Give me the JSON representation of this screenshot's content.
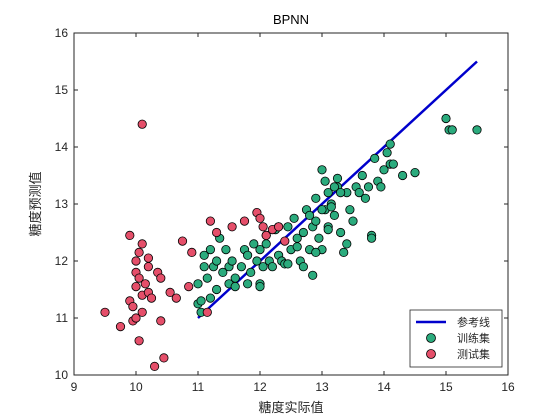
{
  "chart_data": {
    "type": "scatter",
    "title": "BPNN",
    "xlabel": "糖度实际值",
    "ylabel": "糖度预测值",
    "xlim": [
      9,
      16
    ],
    "ylim": [
      10,
      16
    ],
    "xticks": [
      "9",
      "10",
      "11",
      "12",
      "13",
      "14",
      "15",
      "16"
    ],
    "yticks": [
      "10",
      "11",
      "12",
      "13",
      "14",
      "15",
      "16"
    ],
    "grid": false,
    "legend_position": "bottom-right",
    "series": [
      {
        "name": "参考线",
        "kind": "line",
        "color": "#0000cc",
        "points": [
          [
            11.0,
            11.0
          ],
          [
            15.5,
            15.5
          ]
        ]
      },
      {
        "name": "训练集",
        "kind": "scatter",
        "color": "#2bab7d",
        "points": [
          [
            11.0,
            11.6
          ],
          [
            11.0,
            11.25
          ],
          [
            11.05,
            11.3
          ],
          [
            11.1,
            11.9
          ],
          [
            11.1,
            12.1
          ],
          [
            11.15,
            11.7
          ],
          [
            11.2,
            12.2
          ],
          [
            11.25,
            11.9
          ],
          [
            11.3,
            12.0
          ],
          [
            11.3,
            11.5
          ],
          [
            11.35,
            12.4
          ],
          [
            11.4,
            11.8
          ],
          [
            11.45,
            12.2
          ],
          [
            11.5,
            11.9
          ],
          [
            11.55,
            12.0
          ],
          [
            11.6,
            11.7
          ],
          [
            11.7,
            11.9
          ],
          [
            11.75,
            12.2
          ],
          [
            11.8,
            12.1
          ],
          [
            11.85,
            11.8
          ],
          [
            11.9,
            12.3
          ],
          [
            11.95,
            12.0
          ],
          [
            12.0,
            11.6
          ],
          [
            12.0,
            12.2
          ],
          [
            12.05,
            11.9
          ],
          [
            12.1,
            12.3
          ],
          [
            12.15,
            12.0
          ],
          [
            12.2,
            11.9
          ],
          [
            12.3,
            12.6
          ],
          [
            12.3,
            12.1
          ],
          [
            12.35,
            12.0
          ],
          [
            12.4,
            11.95
          ],
          [
            12.45,
            12.6
          ],
          [
            12.5,
            12.2
          ],
          [
            12.55,
            12.75
          ],
          [
            12.6,
            12.4
          ],
          [
            12.65,
            12.0
          ],
          [
            12.7,
            12.5
          ],
          [
            12.75,
            12.9
          ],
          [
            12.8,
            12.8
          ],
          [
            12.8,
            12.2
          ],
          [
            12.85,
            12.6
          ],
          [
            12.9,
            12.7
          ],
          [
            12.9,
            13.1
          ],
          [
            12.95,
            12.4
          ],
          [
            13.0,
            13.6
          ],
          [
            13.0,
            12.2
          ],
          [
            13.05,
            13.4
          ],
          [
            13.05,
            12.9
          ],
          [
            13.1,
            12.6
          ],
          [
            13.1,
            13.2
          ],
          [
            13.15,
            13.0
          ],
          [
            13.2,
            12.8
          ],
          [
            13.25,
            13.3
          ],
          [
            13.3,
            12.5
          ],
          [
            13.35,
            12.15
          ],
          [
            13.4,
            13.2
          ],
          [
            13.45,
            12.9
          ],
          [
            13.5,
            12.7
          ],
          [
            13.55,
            13.3
          ],
          [
            13.6,
            13.2
          ],
          [
            13.65,
            13.5
          ],
          [
            13.7,
            13.1
          ],
          [
            13.75,
            13.3
          ],
          [
            13.8,
            12.45
          ],
          [
            13.8,
            12.4
          ],
          [
            13.85,
            13.8
          ],
          [
            13.9,
            13.4
          ],
          [
            13.95,
            13.3
          ],
          [
            14.0,
            13.6
          ],
          [
            14.05,
            13.9
          ],
          [
            14.1,
            14.05
          ],
          [
            14.1,
            13.7
          ],
          [
            14.15,
            13.7
          ],
          [
            14.3,
            13.5
          ],
          [
            14.5,
            13.55
          ],
          [
            15.0,
            14.5
          ],
          [
            15.05,
            14.3
          ],
          [
            15.1,
            14.3
          ],
          [
            15.5,
            14.3
          ],
          [
            11.05,
            11.1
          ],
          [
            11.2,
            11.35
          ],
          [
            11.5,
            11.6
          ],
          [
            11.6,
            11.55
          ],
          [
            11.8,
            11.6
          ],
          [
            12.0,
            11.55
          ],
          [
            12.1,
            12.45
          ],
          [
            12.25,
            12.55
          ],
          [
            12.45,
            11.95
          ],
          [
            12.6,
            12.25
          ],
          [
            12.7,
            11.9
          ],
          [
            12.85,
            11.75
          ],
          [
            12.9,
            12.15
          ],
          [
            13.0,
            12.9
          ],
          [
            13.1,
            12.55
          ],
          [
            13.2,
            13.3
          ],
          [
            13.25,
            13.45
          ],
          [
            13.3,
            13.2
          ],
          [
            13.4,
            12.3
          ],
          [
            13.15,
            12.95
          ]
        ]
      },
      {
        "name": "测试集",
        "kind": "scatter",
        "color": "#e54f6a",
        "points": [
          [
            9.5,
            11.1
          ],
          [
            9.75,
            10.85
          ],
          [
            9.9,
            12.45
          ],
          [
            9.9,
            11.3
          ],
          [
            9.95,
            10.95
          ],
          [
            9.95,
            11.2
          ],
          [
            10.0,
            11.55
          ],
          [
            10.0,
            11.8
          ],
          [
            10.0,
            12.0
          ],
          [
            10.0,
            11.0
          ],
          [
            10.05,
            10.6
          ],
          [
            10.05,
            11.7
          ],
          [
            10.05,
            12.15
          ],
          [
            10.1,
            12.3
          ],
          [
            10.1,
            11.1
          ],
          [
            10.1,
            11.4
          ],
          [
            10.1,
            14.4
          ],
          [
            10.15,
            11.6
          ],
          [
            10.2,
            11.45
          ],
          [
            10.2,
            11.9
          ],
          [
            10.2,
            12.05
          ],
          [
            10.25,
            11.35
          ],
          [
            10.3,
            10.15
          ],
          [
            10.35,
            11.8
          ],
          [
            10.4,
            11.7
          ],
          [
            10.4,
            10.95
          ],
          [
            10.45,
            10.3
          ],
          [
            10.55,
            11.45
          ],
          [
            10.65,
            11.35
          ],
          [
            10.75,
            12.35
          ],
          [
            10.85,
            11.55
          ],
          [
            10.9,
            12.15
          ],
          [
            11.15,
            11.1
          ],
          [
            11.2,
            12.7
          ],
          [
            11.3,
            12.5
          ],
          [
            11.55,
            12.6
          ],
          [
            11.75,
            12.7
          ],
          [
            11.95,
            12.85
          ],
          [
            12.0,
            12.75
          ],
          [
            12.05,
            12.6
          ],
          [
            12.1,
            12.45
          ],
          [
            12.2,
            12.55
          ],
          [
            12.3,
            12.6
          ],
          [
            12.4,
            12.35
          ]
        ]
      }
    ]
  }
}
